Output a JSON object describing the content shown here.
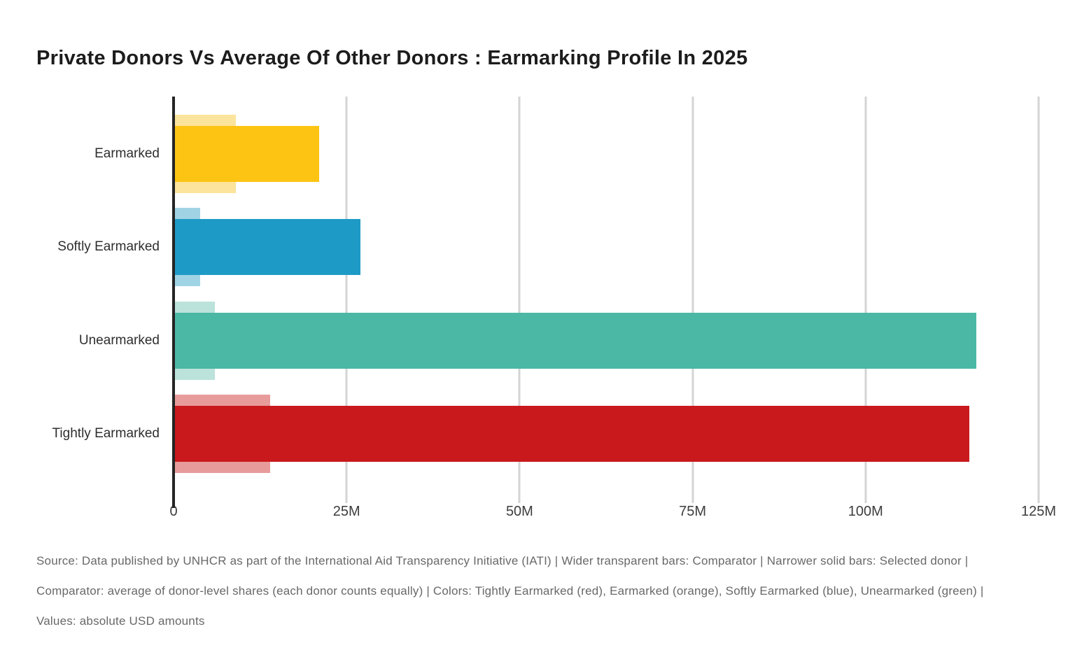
{
  "header": {
    "title": "Private Donors Vs Average Of Other Donors : Earmarking Profile In 2025"
  },
  "chart_data": {
    "type": "bar",
    "orientation": "horizontal",
    "title": "Private Donors Vs Average Of Other Donors : Earmarking Profile In 2025",
    "categories": [
      "Earmarked",
      "Softly Earmarked",
      "Unearmarked",
      "Tightly Earmarked"
    ],
    "series": [
      {
        "name": "Comparator",
        "style": "wider transparent bars",
        "values_usd_millions": [
          9,
          3.8,
          6,
          14
        ]
      },
      {
        "name": "Selected donor",
        "style": "narrower solid bars",
        "values_usd_millions": [
          21,
          27,
          116,
          115
        ]
      }
    ],
    "bar_colors": {
      "solid": [
        "#FDC413",
        "#1E9AC6",
        "#4AB8A5",
        "#C9191C"
      ],
      "light": [
        "#FCE49C",
        "#A0D4E5",
        "#BCE3DB",
        "#E79C9B"
      ]
    },
    "x_axis": {
      "tick_labels": [
        "0",
        "25M",
        "50M",
        "75M",
        "100M",
        "125M"
      ],
      "tick_values_millions": [
        0,
        25,
        50,
        75,
        100,
        125
      ],
      "max_millions": 125,
      "unit": "USD"
    },
    "grid": "vertical gray gridlines at each tick",
    "legend": "none",
    "axis_color": "#242424",
    "gridline_color": "#d4d4d4"
  },
  "footer": {
    "lines": [
      "Source: Data published by UNHCR as part of the International Aid Transparency Initiative (IATI) | Wider transparent bars: Comparator | Narrower solid bars: Selected donor |",
      "Comparator: average of donor-level shares (each donor counts equally) | Colors: Tightly Earmarked (red), Earmarked (orange), Softly Earmarked (blue), Unearmarked (green) |",
      "Values: absolute USD amounts"
    ]
  }
}
